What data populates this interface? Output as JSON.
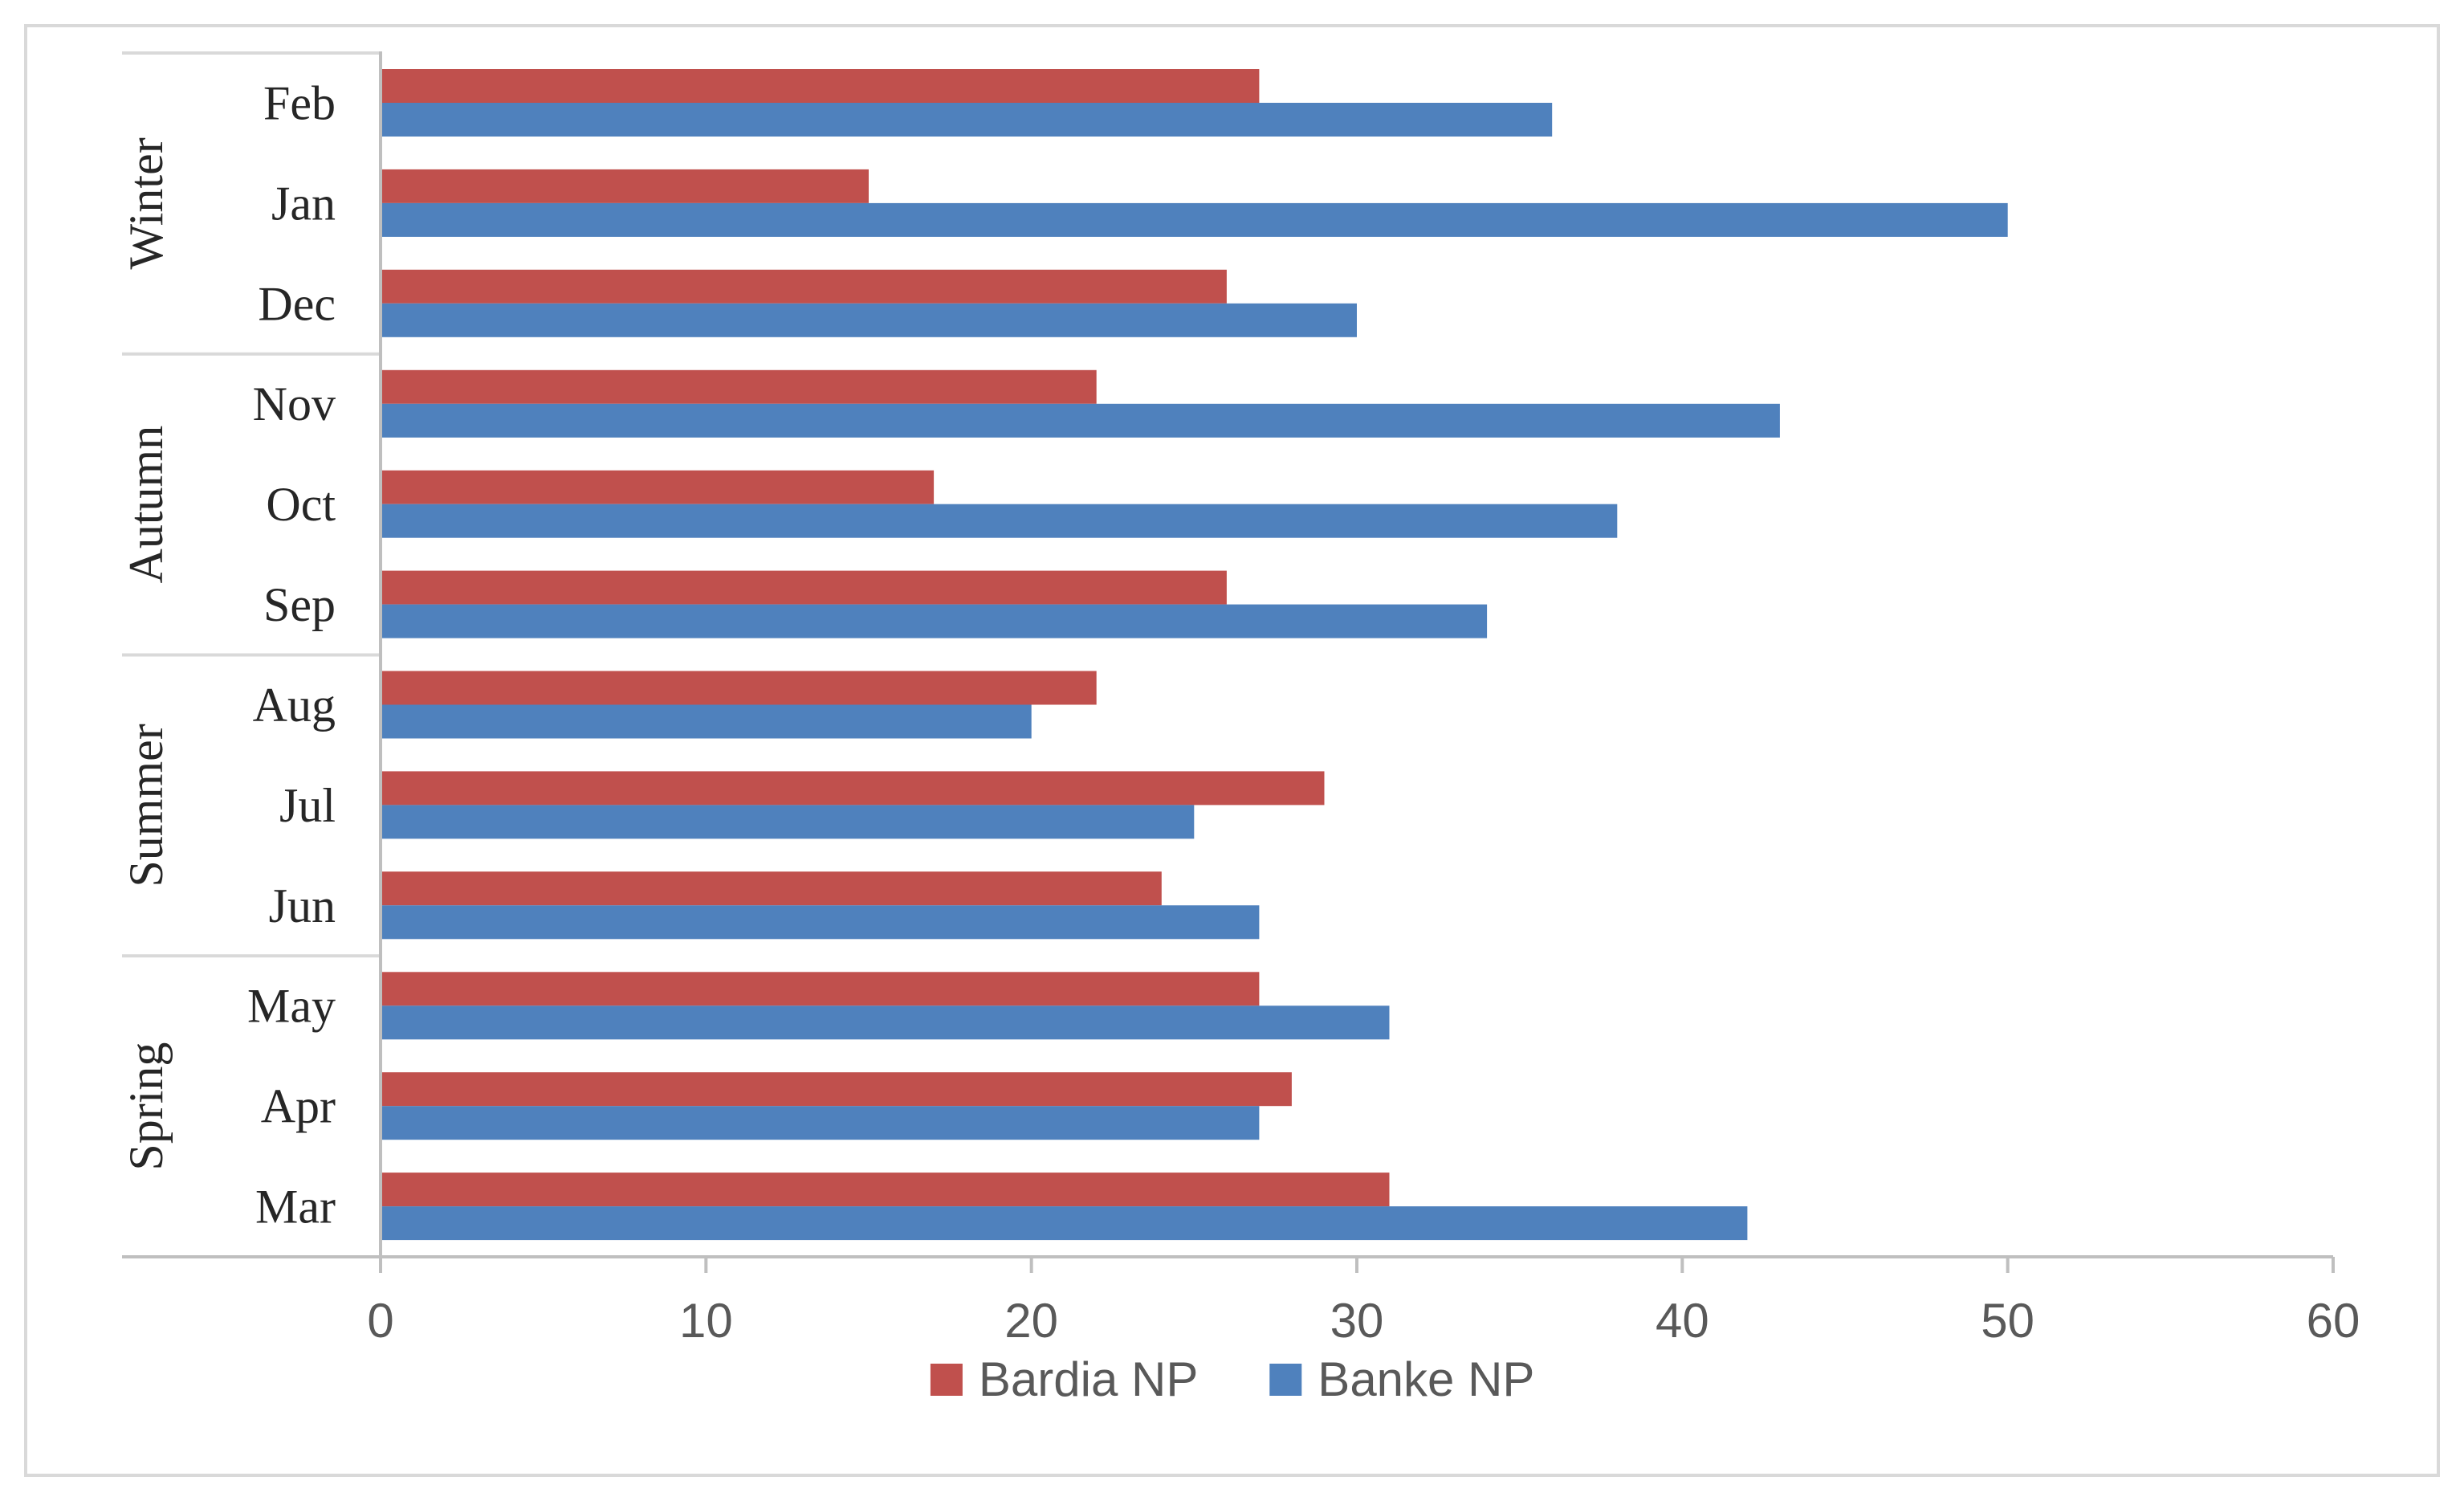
{
  "chart_data": {
    "type": "bar",
    "orientation": "horizontal",
    "title": "",
    "xlabel": "",
    "ylabel": "",
    "xlim": [
      0,
      60
    ],
    "x_ticks": [
      0,
      10,
      20,
      30,
      40,
      50,
      60
    ],
    "grid": false,
    "legend_position": "bottom",
    "groups": [
      {
        "name": "Winter",
        "months": [
          "Feb",
          "Jan",
          "Dec"
        ]
      },
      {
        "name": "Autumn",
        "months": [
          "Nov",
          "Oct",
          "Sep"
        ]
      },
      {
        "name": "Summer",
        "months": [
          "Aug",
          "Jul",
          "Jun"
        ]
      },
      {
        "name": "Spring",
        "months": [
          "May",
          "Apr",
          "Mar"
        ]
      }
    ],
    "categories": [
      "Feb",
      "Jan",
      "Dec",
      "Nov",
      "Oct",
      "Sep",
      "Aug",
      "Jul",
      "Jun",
      "May",
      "Apr",
      "Mar"
    ],
    "series": [
      {
        "name": "Bardia NP",
        "color": "#c0504d",
        "values": [
          27,
          15,
          26,
          22,
          17,
          26,
          22,
          29,
          24,
          27,
          28,
          31
        ]
      },
      {
        "name": "Banke NP",
        "color": "#4f81bd",
        "values": [
          36,
          50,
          30,
          43,
          38,
          34,
          20,
          25,
          27,
          31,
          27,
          42
        ]
      }
    ]
  }
}
